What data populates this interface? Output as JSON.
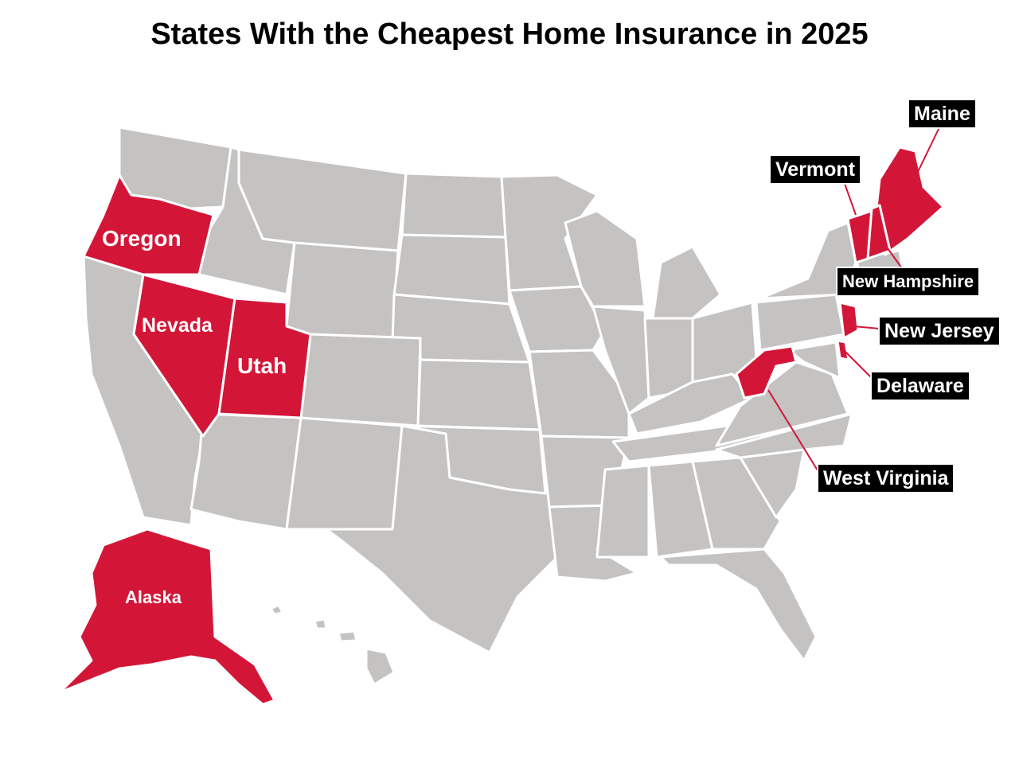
{
  "title": "States With the Cheapest Home Insurance in 2025",
  "colors": {
    "highlight": "#d31638",
    "other": "#c4c3c2",
    "label_bg": "#000000",
    "label_text": "#ffffff"
  },
  "highlighted_states": {
    "oregon": "Oregon",
    "nevada": "Nevada",
    "utah": "Utah",
    "alaska": "Alaska",
    "maine": "Maine",
    "vermont": "Vermont",
    "new_hampshire": "New Hampshire",
    "new_jersey": "New Jersey",
    "delaware": "Delaware",
    "west_virginia": "West Virginia"
  }
}
